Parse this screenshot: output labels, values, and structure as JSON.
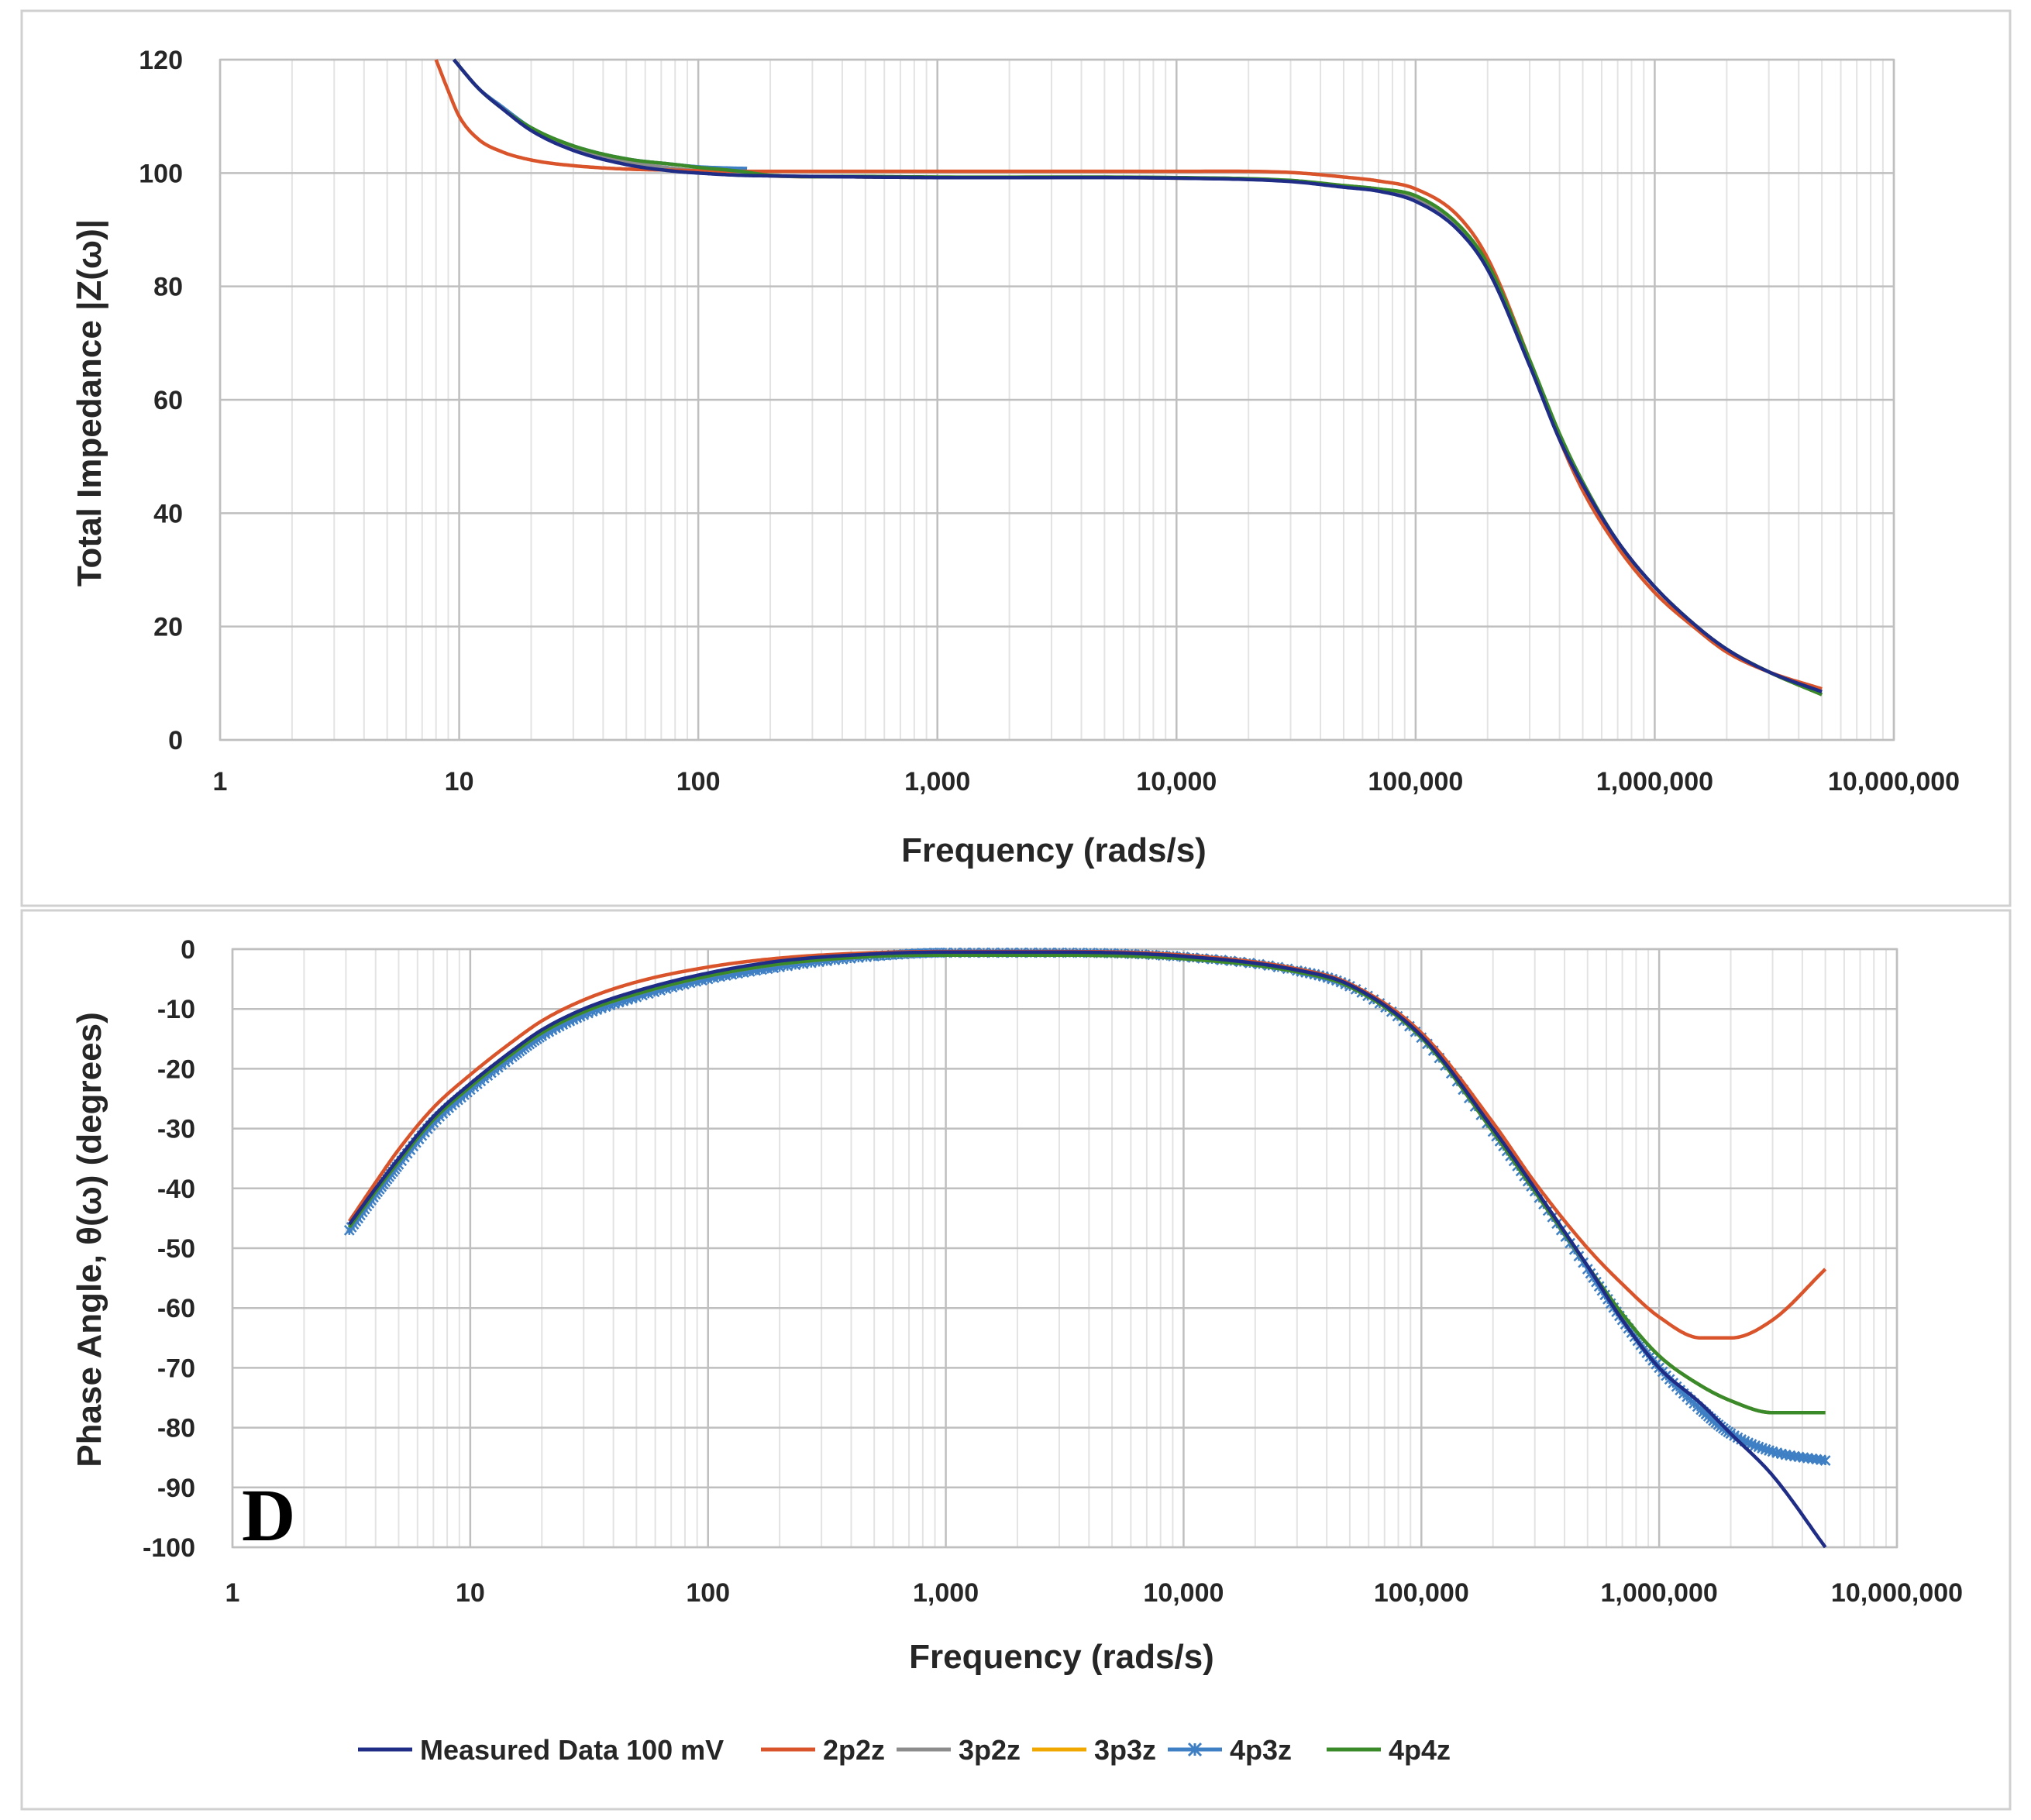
{
  "colors": {
    "measured": "#1f2d86",
    "2p2z": "#d9542b",
    "3p2z": "#8c8c8c",
    "3p3z": "#f0a800",
    "4p3z": "#3f7fc4",
    "4p4z": "#3a8a2a",
    "grid_major": "#bfbfbf",
    "grid_minor": "#e3e3e3",
    "frame": "#d0d0d0"
  },
  "legend": {
    "items": [
      {
        "key": "measured",
        "label": "Measured Data 100 mV",
        "marker": "none"
      },
      {
        "key": "2p2z",
        "label": "2p2z",
        "marker": "none"
      },
      {
        "key": "3p2z",
        "label": "3p2z",
        "marker": "none"
      },
      {
        "key": "3p3z",
        "label": "3p3z",
        "marker": "none"
      },
      {
        "key": "4p3z",
        "label": "4p3z",
        "marker": "star-x"
      },
      {
        "key": "4p4z",
        "label": "4p4z",
        "marker": "none"
      }
    ]
  },
  "panel_tag": "D",
  "chart_data": [
    {
      "type": "line",
      "title": "",
      "xlabel": "Frequency (rads/s)",
      "ylabel": "Total Impedance |Z(ω)|",
      "xscale": "log",
      "xlim": [
        1,
        10000000
      ],
      "ylim": [
        0,
        120
      ],
      "xticks": [
        1,
        10,
        100,
        1000,
        10000,
        100000,
        1000000,
        10000000
      ],
      "xtick_labels": [
        "1",
        "10",
        "100",
        "1,000",
        "10,000",
        "100,000",
        "1,000,000",
        "10,000,000"
      ],
      "yticks": [
        0,
        20,
        40,
        60,
        80,
        100,
        120
      ],
      "ytick_labels": [
        "0",
        "20",
        "40",
        "60",
        "80",
        "100",
        "120"
      ],
      "grid": true,
      "legend": "bottom",
      "series": [
        {
          "name": "Measured Data 100 mV",
          "key": "measured",
          "x": [
            9.5,
            12,
            15,
            20,
            30,
            50,
            80,
            100,
            150,
            200,
            500,
            1000,
            10000,
            30000,
            50000,
            70000,
            100000,
            150000,
            200000,
            300000,
            400000,
            500000,
            700000,
            1000000,
            1500000,
            2000000,
            3000000,
            5000000
          ],
          "y": [
            120,
            115,
            111.5,
            107.5,
            104,
            101.5,
            100.3,
            100,
            99.6,
            99.5,
            99.3,
            99.2,
            99.1,
            98.5,
            97.5,
            96.8,
            95,
            90,
            83,
            66,
            53,
            45,
            35,
            27,
            20,
            16,
            12,
            8.5
          ]
        },
        {
          "name": "2p2z",
          "key": "2p2z",
          "x": [
            8,
            9,
            10,
            12,
            15,
            20,
            30,
            50,
            80,
            100,
            200,
            1000,
            10000,
            30000,
            50000,
            70000,
            100000,
            150000,
            200000,
            300000,
            400000,
            500000,
            700000,
            1000000,
            1500000,
            2000000,
            3000000,
            5000000
          ],
          "y": [
            120,
            114.5,
            110,
            106,
            103.8,
            102.3,
            101.3,
            100.7,
            100.5,
            100.4,
            100.3,
            100.3,
            100.3,
            100.1,
            99.3,
            98.6,
            97.2,
            92.5,
            85,
            67,
            53,
            44,
            34,
            26,
            19.5,
            15.5,
            12,
            9
          ]
        },
        {
          "name": "3p2z",
          "key": "3p2z",
          "x": [
            9.5,
            12,
            15,
            20,
            30,
            50,
            80,
            100,
            150,
            200,
            500,
            1000,
            10000,
            30000,
            50000,
            70000,
            100000,
            150000,
            200000,
            300000,
            400000,
            500000,
            700000,
            1000000,
            1500000,
            2000000,
            3000000,
            5000000
          ],
          "y": [
            120,
            115,
            111.5,
            107.8,
            104.3,
            102,
            100.8,
            100.4,
            99.9,
            99.5,
            99.3,
            99.2,
            99.1,
            98.6,
            97.7,
            97,
            95.5,
            90.5,
            83.5,
            66.5,
            53.5,
            45,
            35,
            27,
            20,
            16,
            12,
            8
          ]
        },
        {
          "name": "3p3z",
          "key": "3p3z",
          "x": [
            9.5,
            12,
            15,
            20,
            30,
            50,
            80,
            100,
            150,
            200,
            500,
            1000,
            10000,
            30000,
            50000,
            70000,
            100000,
            150000,
            200000,
            300000,
            400000,
            500000,
            700000,
            1000000,
            1500000,
            2000000,
            3000000,
            5000000
          ],
          "y": [
            120,
            115,
            111.5,
            107.8,
            104.3,
            102,
            100.8,
            100.4,
            99.9,
            99.5,
            99.3,
            99.2,
            99.1,
            98.6,
            97.7,
            97,
            95.5,
            90.5,
            83.5,
            66.5,
            53.5,
            45,
            35,
            27,
            20,
            16,
            12,
            8
          ]
        },
        {
          "name": "4p3z",
          "key": "4p3z",
          "x": [
            9.5,
            12,
            15,
            20,
            30,
            50,
            80,
            100,
            130,
            160
          ],
          "y": [
            120,
            115,
            111.8,
            108,
            104.8,
            102.5,
            101.5,
            101.1,
            100.9,
            100.8
          ]
        },
        {
          "name": "4p4z",
          "key": "4p4z",
          "x": [
            9.5,
            12,
            15,
            20,
            30,
            50,
            80,
            100,
            150,
            200,
            500,
            1000,
            10000,
            30000,
            50000,
            70000,
            100000,
            150000,
            200000,
            300000,
            400000,
            500000,
            700000,
            1000000,
            1500000,
            2000000,
            3000000,
            5000000
          ],
          "y": [
            120,
            115,
            111.5,
            108,
            104.8,
            102.5,
            101.5,
            101,
            100.3,
            99.6,
            99.4,
            99.3,
            99.2,
            98.7,
            97.8,
            97.2,
            96,
            91,
            84,
            67,
            54,
            45.5,
            35,
            27,
            20,
            16,
            12,
            8
          ]
        }
      ]
    },
    {
      "type": "line",
      "title": "",
      "xlabel": "Frequency (rads/s)",
      "ylabel": "Phase Angle, θ(ω) (degrees)",
      "xscale": "log",
      "xlim": [
        1,
        10000000
      ],
      "ylim": [
        -100,
        0
      ],
      "xticks": [
        1,
        10,
        100,
        1000,
        10000,
        100000,
        1000000,
        10000000
      ],
      "xtick_labels": [
        "1",
        "10",
        "100",
        "1,000",
        "10,000",
        "100,000",
        "1,000,000",
        "10,000,000"
      ],
      "yticks": [
        0,
        -10,
        -20,
        -30,
        -40,
        -50,
        -60,
        -70,
        -80,
        -90,
        -100
      ],
      "ytick_labels": [
        "0",
        "-10",
        "-20",
        "-30",
        "-40",
        "-50",
        "-60",
        "-70",
        "-80",
        "-90",
        "-100"
      ],
      "grid": true,
      "legend": "bottom",
      "series": [
        {
          "name": "Measured Data 100 mV",
          "key": "measured",
          "x": [
            3.1,
            4,
            5,
            7,
            10,
            15,
            20,
            30,
            50,
            100,
            200,
            500,
            1000,
            3000,
            10000,
            30000,
            50000,
            100000,
            200000,
            300000,
            500000,
            700000,
            1000000,
            1500000,
            2000000,
            3000000,
            5000000
          ],
          "y": [
            -46,
            -40,
            -35,
            -28,
            -22.5,
            -17,
            -13.5,
            -10,
            -7,
            -4,
            -2,
            -0.8,
            -0.5,
            -0.5,
            -1.2,
            -3.5,
            -6,
            -14.5,
            -30,
            -40,
            -53,
            -62,
            -70,
            -76,
            -81,
            -88,
            -100
          ]
        },
        {
          "name": "2p2z",
          "key": "2p2z",
          "x": [
            3.1,
            4,
            5,
            7,
            10,
            15,
            20,
            30,
            50,
            100,
            200,
            500,
            1000,
            3000,
            10000,
            30000,
            50000,
            100000,
            200000,
            300000,
            500000,
            700000,
            1000000,
            1500000,
            2000000,
            3000000,
            5000000
          ],
          "y": [
            -45.5,
            -39,
            -33.5,
            -26.5,
            -21,
            -15.5,
            -12,
            -8.5,
            -5.5,
            -3,
            -1.5,
            -0.6,
            -0.4,
            -0.4,
            -1,
            -3.3,
            -5.8,
            -14,
            -29,
            -39,
            -50,
            -56,
            -61.5,
            -65,
            -65,
            -62,
            -53.5
          ]
        },
        {
          "name": "3p2z",
          "key": "3p2z",
          "x": [
            3.1,
            4,
            5,
            7,
            10,
            15,
            20,
            30,
            50,
            100,
            200,
            500,
            1000,
            3000,
            10000,
            30000,
            50000,
            100000,
            200000,
            300000,
            500000,
            700000,
            1000000,
            1500000,
            2000000,
            3000000,
            5000000
          ],
          "y": [
            -46.5,
            -40.5,
            -35.5,
            -28.5,
            -23,
            -17.5,
            -14,
            -10.5,
            -7.5,
            -4.5,
            -2.5,
            -1.2,
            -1,
            -1,
            -1.6,
            -3.8,
            -6.3,
            -14.8,
            -30.5,
            -40.5,
            -53,
            -61,
            -68,
            -73,
            -75.5,
            -77.5,
            -77.5
          ]
        },
        {
          "name": "3p3z",
          "key": "3p3z",
          "x": [
            3.1,
            4,
            5,
            7,
            10,
            15,
            20,
            30,
            50,
            100,
            200,
            500,
            1000,
            3000,
            10000,
            30000,
            50000,
            100000,
            200000,
            300000,
            500000,
            700000,
            1000000,
            1500000,
            2000000,
            3000000,
            5000000
          ],
          "y": [
            -46.5,
            -40.5,
            -35.5,
            -28.5,
            -23,
            -17.5,
            -14,
            -10.5,
            -7.5,
            -4.5,
            -2.5,
            -1.2,
            -1,
            -1,
            -1.6,
            -3.8,
            -6.3,
            -14.8,
            -30.5,
            -40.5,
            -53,
            -61,
            -68,
            -73,
            -75.5,
            -77.5,
            -77.5
          ]
        },
        {
          "name": "4p3z",
          "key": "4p3z",
          "x": [
            3.1,
            4,
            5,
            7,
            10,
            15,
            20,
            30,
            50,
            100,
            200,
            500,
            1000,
            3000,
            10000,
            30000,
            50000,
            100000,
            200000,
            300000,
            500000,
            700000,
            1000000,
            1500000,
            2000000,
            3000000,
            5000000
          ],
          "y": [
            -47,
            -41,
            -36,
            -29,
            -23.5,
            -18,
            -14.5,
            -11,
            -8,
            -5,
            -3,
            -1.2,
            -0.6,
            -0.6,
            -1.3,
            -3.6,
            -6.2,
            -14.8,
            -30.5,
            -40.5,
            -53.5,
            -62,
            -70,
            -77,
            -81,
            -84,
            -85.5
          ]
        },
        {
          "name": "4p4z",
          "key": "4p4z",
          "x": [
            3.1,
            4,
            5,
            7,
            10,
            15,
            20,
            30,
            50,
            100,
            200,
            500,
            1000,
            3000,
            10000,
            30000,
            50000,
            100000,
            200000,
            300000,
            500000,
            700000,
            1000000,
            1500000,
            2000000,
            3000000,
            5000000
          ],
          "y": [
            -46.5,
            -40.5,
            -35.5,
            -28.5,
            -23,
            -17.5,
            -14,
            -10.5,
            -7.5,
            -4.5,
            -2.5,
            -1.2,
            -1,
            -1,
            -1.6,
            -3.8,
            -6.3,
            -14.8,
            -30.5,
            -40.5,
            -53,
            -61,
            -68,
            -73,
            -75.5,
            -77.5,
            -77.5
          ]
        }
      ]
    }
  ]
}
